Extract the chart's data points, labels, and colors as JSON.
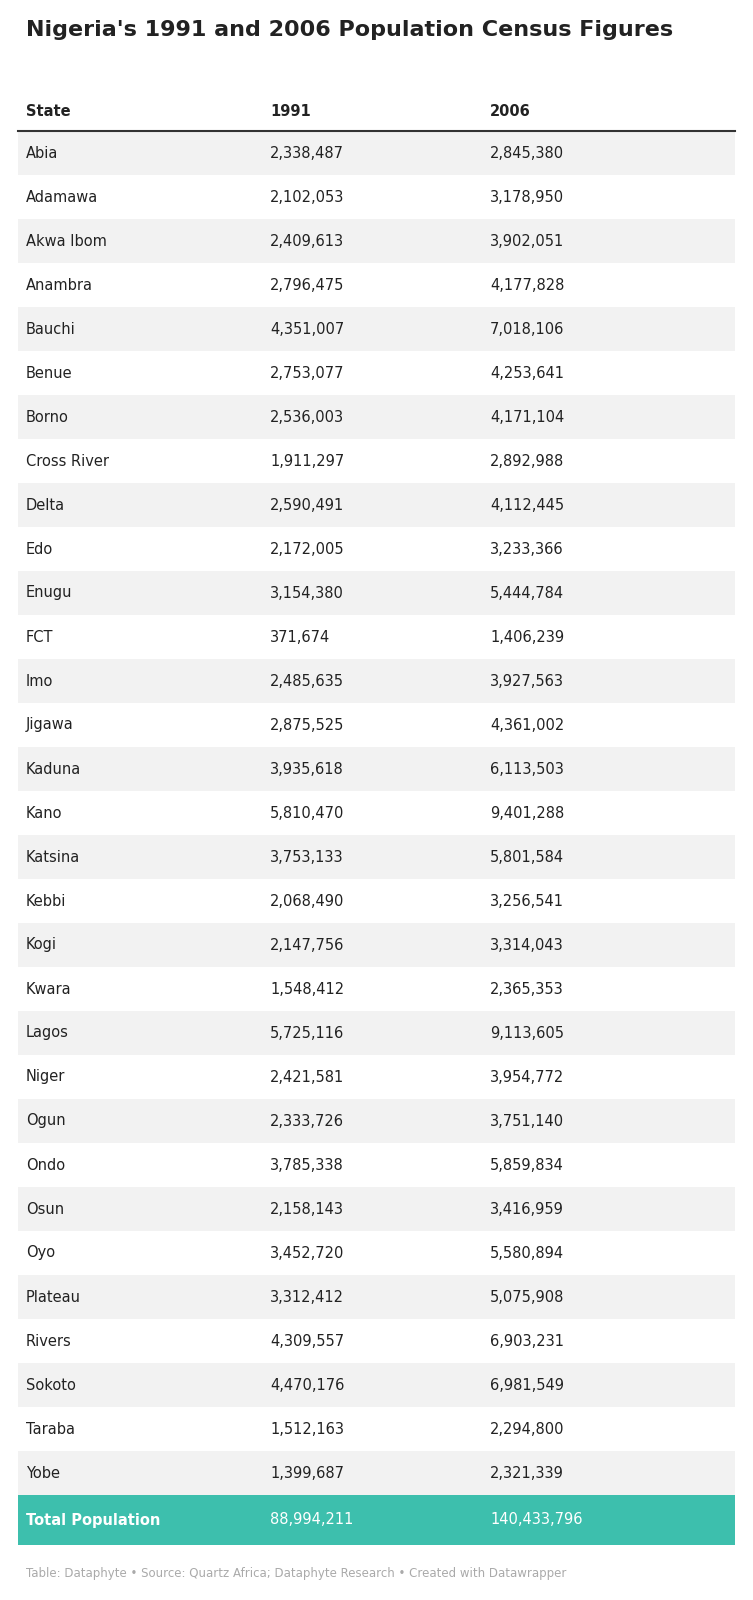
{
  "title": "Nigeria's 1991 and 2006 Population Census Figures",
  "col_headers": [
    "State",
    "1991",
    "2006"
  ],
  "states": [
    "Abia",
    "Adamawa",
    "Akwa Ibom",
    "Anambra",
    "Bauchi",
    "Benue",
    "Borno",
    "Cross River",
    "Delta",
    "Edo",
    "Enugu",
    "FCT",
    "Imo",
    "Jigawa",
    "Kaduna",
    "Kano",
    "Katsina",
    "Kebbi",
    "Kogi",
    "Kwara",
    "Lagos",
    "Niger",
    "Ogun",
    "Ondo",
    "Osun",
    "Oyo",
    "Plateau",
    "Rivers",
    "Sokoto",
    "Taraba",
    "Yobe"
  ],
  "pop_1991": [
    2338487,
    2102053,
    2409613,
    2796475,
    4351007,
    2753077,
    2536003,
    1911297,
    2590491,
    2172005,
    3154380,
    371674,
    2485635,
    2875525,
    3935618,
    5810470,
    3753133,
    2068490,
    2147756,
    1548412,
    5725116,
    2421581,
    2333726,
    3785338,
    2158143,
    3452720,
    3312412,
    4309557,
    4470176,
    1512163,
    1399687
  ],
  "pop_2006": [
    2845380,
    3178950,
    3902051,
    4177828,
    7018106,
    4253641,
    4171104,
    2892988,
    4112445,
    3233366,
    5444784,
    1406239,
    3927563,
    4361002,
    6113503,
    9401288,
    5801584,
    3256541,
    3314043,
    2365353,
    9113605,
    3954772,
    3751140,
    5859834,
    3416959,
    5580894,
    5075908,
    6903231,
    6981549,
    2294800,
    2321339
  ],
  "total_label": "Total Population",
  "total_1991": "88,994,211",
  "total_2006": "140,433,796",
  "footer": "Table: Dataphyte • Source: Quartz Africa; Dataphyte Research • Created with Datawrapper",
  "row_bg_odd": "#f2f2f2",
  "row_bg_even": "#ffffff",
  "total_bg": "#3dbfad",
  "total_text_color": "#ffffff",
  "header_line_color": "#333333",
  "text_color": "#222222",
  "footer_color": "#aaaaaa",
  "title_fontsize": 16,
  "header_fontsize": 10.5,
  "cell_fontsize": 10.5,
  "total_fontsize": 10.5,
  "footer_fontsize": 8.5
}
